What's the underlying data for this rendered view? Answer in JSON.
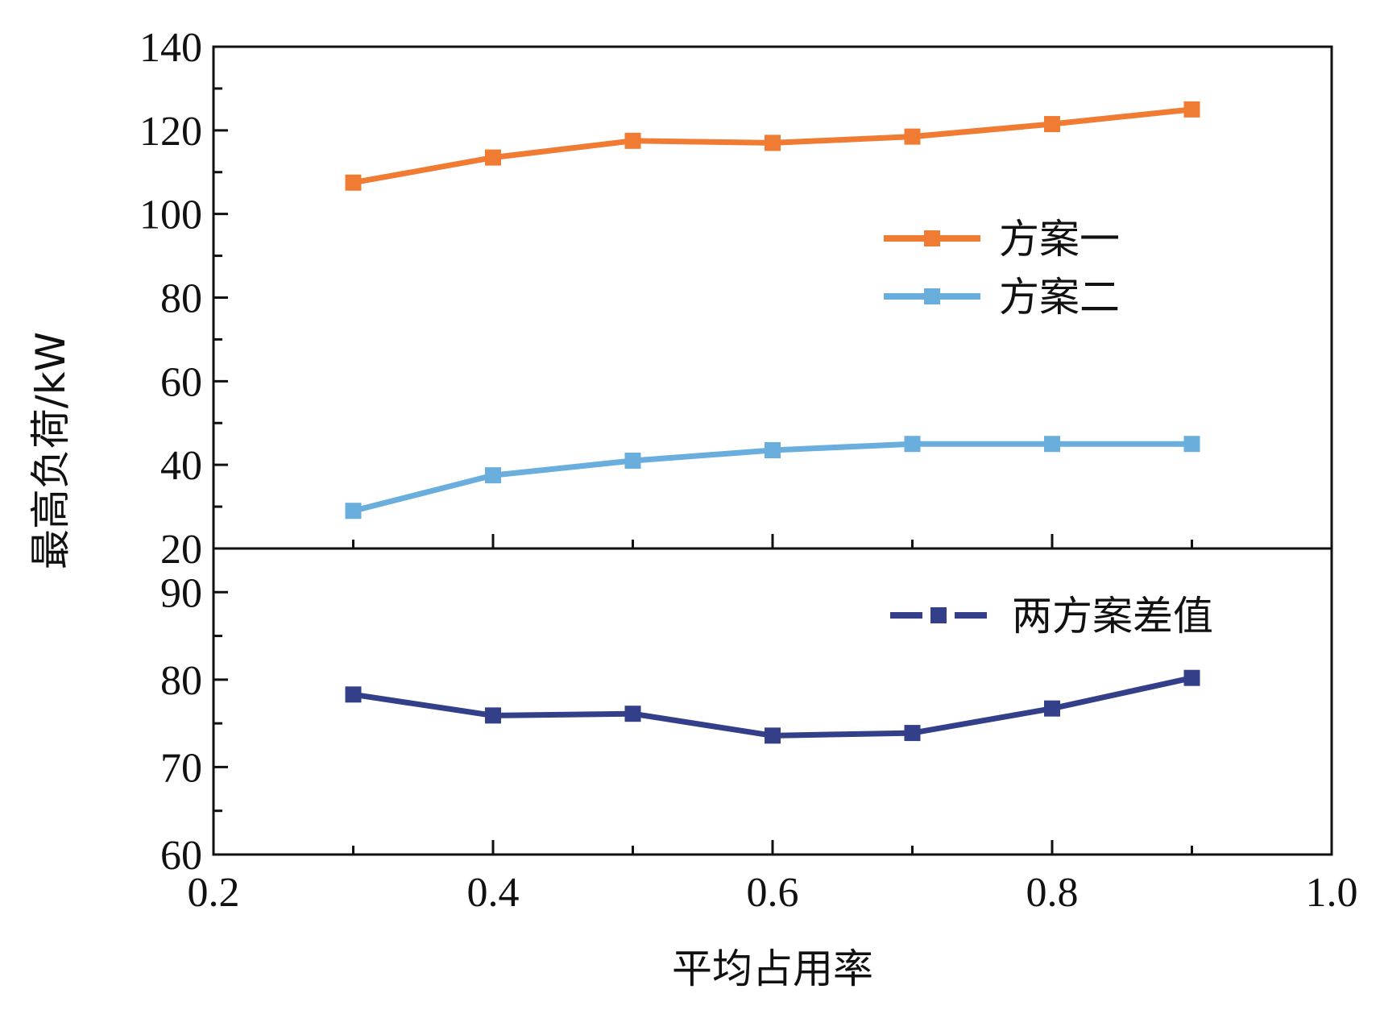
{
  "chart_data": [
    {
      "type": "line",
      "panel": "top",
      "x": [
        0.3,
        0.4,
        0.5,
        0.6,
        0.7,
        0.8,
        0.9
      ],
      "series": [
        {
          "name": "方案一",
          "color": "#F07B33",
          "values": [
            107.5,
            113.5,
            117.5,
            117.0,
            118.5,
            121.5,
            125.0
          ]
        },
        {
          "name": "方案二",
          "color": "#6AAEDD",
          "values": [
            29.0,
            37.5,
            41.0,
            43.5,
            45.0,
            45.0,
            45.0
          ]
        }
      ],
      "ylim": [
        20,
        140
      ],
      "yticks": [
        "20",
        "40",
        "60",
        "80",
        "100",
        "120",
        "140"
      ],
      "legend": "right"
    },
    {
      "type": "line",
      "panel": "bottom",
      "x": [
        0.3,
        0.4,
        0.5,
        0.6,
        0.7,
        0.8,
        0.9
      ],
      "series": [
        {
          "name": "两方案差值",
          "color": "#343F8A",
          "values": [
            78.3,
            75.9,
            76.1,
            73.6,
            73.9,
            76.7,
            80.2
          ]
        }
      ],
      "ylim": [
        60,
        95
      ],
      "yticks": [
        "60",
        "70",
        "80",
        "90"
      ],
      "legend": "top-right"
    }
  ],
  "xlim": [
    0.2,
    1.0
  ],
  "xticks": [
    "0.2",
    "0.4",
    "0.6",
    "0.8",
    "1.0"
  ],
  "xlabel": "平均占用率",
  "ylabel": "最高负荷/kW"
}
